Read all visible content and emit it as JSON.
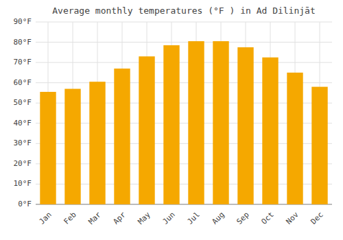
{
  "chart_data": {
    "type": "bar",
    "title": "Average monthly temperatures (°F ) in Ad Dilinjāt",
    "categories": [
      "Jan",
      "Feb",
      "Mar",
      "Apr",
      "May",
      "Jun",
      "Jul",
      "Aug",
      "Sep",
      "Oct",
      "Nov",
      "Dec"
    ],
    "values": [
      55.5,
      57.0,
      60.5,
      67.0,
      73.0,
      78.5,
      80.5,
      80.5,
      77.5,
      72.5,
      65.0,
      58.0
    ],
    "color": "#F5A800",
    "ylim": [
      0,
      90
    ],
    "yticks": [
      {
        "value": 0,
        "label": "0°F"
      },
      {
        "value": 10,
        "label": "10°F"
      },
      {
        "value": 20,
        "label": "20°F"
      },
      {
        "value": 30,
        "label": "30°F"
      },
      {
        "value": 40,
        "label": "40°F"
      },
      {
        "value": 50,
        "label": "50°F"
      },
      {
        "value": 60,
        "label": "60°F"
      },
      {
        "value": 70,
        "label": "70°F"
      },
      {
        "value": 80,
        "label": "80°F"
      },
      {
        "value": 90,
        "label": "90°F"
      }
    ],
    "grid": true
  }
}
